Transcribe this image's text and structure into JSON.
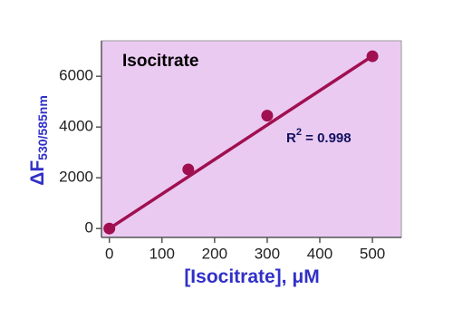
{
  "chart_data": {
    "type": "scatter",
    "title": "Isocitrate",
    "x_label": {
      "main": "[Isocitrate], ",
      "unit": "μM"
    },
    "y_label": {
      "main": "ΔF",
      "sub": "530/585nm"
    },
    "annotation": {
      "base": "R",
      "sup": "2",
      "rest": " = 0.998"
    },
    "x": [
      0,
      150,
      300,
      500
    ],
    "values": [
      0,
      2330,
      4450,
      6790
    ],
    "color": "#a01050",
    "fit": {
      "x": [
        0,
        500
      ],
      "values": [
        0,
        6800
      ]
    },
    "xlim": [
      -15,
      555
    ],
    "ylim": [
      -350,
      7400
    ],
    "xticks": [
      0,
      100,
      200,
      300,
      400,
      500
    ],
    "yticks": [
      0,
      2000,
      4000,
      6000
    ],
    "background": "#ebcaf2",
    "label_color": "#3030c8"
  }
}
